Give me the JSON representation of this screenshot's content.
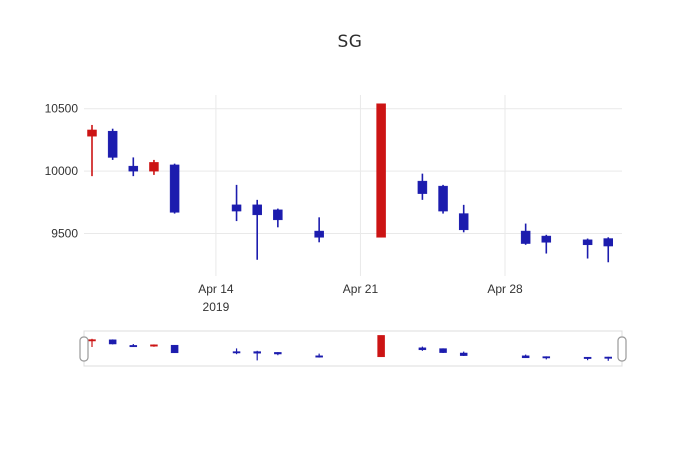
{
  "colors": {
    "up": "#1c1cae",
    "down": "#cc1414",
    "grid": "#e9e9e9",
    "axis_text": "#333333",
    "slider_border": "#dcdcdc",
    "handle_border": "#9a9a9a",
    "background": "#ffffff"
  },
  "chart_data": {
    "type": "candlestick",
    "title": "SG",
    "legend_position": "none",
    "grid": true,
    "rangeslider": true,
    "increasing_color": "#1c1cae",
    "decreasing_color": "#cc1414",
    "y_ticks": [
      10500,
      10000,
      9500
    ],
    "y_axis_range": [
      9160,
      10610
    ],
    "x_tick_labels": [
      {
        "label": "Apr 14",
        "sublabel": "2019",
        "day": 6
      },
      {
        "label": "Apr 21",
        "sublabel": "",
        "day": 13
      },
      {
        "label": "Apr 28",
        "sublabel": "",
        "day": 20
      }
    ],
    "candles": [
      {
        "date": "Apr 8",
        "day": 0,
        "open": 10330,
        "high": 10370,
        "low": 9960,
        "close": 10280
      },
      {
        "date": "Apr 9",
        "day": 1,
        "open": 10110,
        "high": 10340,
        "low": 10090,
        "close": 10320
      },
      {
        "date": "Apr 10",
        "day": 2,
        "open": 10000,
        "high": 10110,
        "low": 9960,
        "close": 10040
      },
      {
        "date": "Apr 11",
        "day": 3,
        "open": 10070,
        "high": 10090,
        "low": 9970,
        "close": 10000
      },
      {
        "date": "Apr 12",
        "day": 4,
        "open": 9670,
        "high": 10060,
        "low": 9660,
        "close": 10050
      },
      {
        "date": "Apr 15",
        "day": 7,
        "open": 9680,
        "high": 9890,
        "low": 9600,
        "close": 9730
      },
      {
        "date": "Apr 16",
        "day": 8,
        "open": 9650,
        "high": 9770,
        "low": 9290,
        "close": 9730
      },
      {
        "date": "Apr 17",
        "day": 9,
        "open": 9610,
        "high": 9700,
        "low": 9550,
        "close": 9690
      },
      {
        "date": "Apr 19",
        "day": 11,
        "open": 9470,
        "high": 9630,
        "low": 9430,
        "close": 9520
      },
      {
        "date": "Apr 22",
        "day": 14,
        "open": 10540,
        "high": 10540,
        "low": 9470,
        "close": 9470
      },
      {
        "date": "Apr 24",
        "day": 16,
        "open": 9820,
        "high": 9980,
        "low": 9770,
        "close": 9920
      },
      {
        "date": "Apr 25",
        "day": 17,
        "open": 9680,
        "high": 9890,
        "low": 9660,
        "close": 9880
      },
      {
        "date": "Apr 26",
        "day": 18,
        "open": 9530,
        "high": 9730,
        "low": 9510,
        "close": 9660
      },
      {
        "date": "Apr 29",
        "day": 21,
        "open": 9420,
        "high": 9580,
        "low": 9410,
        "close": 9520
      },
      {
        "date": "Apr 30",
        "day": 22,
        "open": 9430,
        "high": 9490,
        "low": 9340,
        "close": 9480
      },
      {
        "date": "May 2",
        "day": 24,
        "open": 9410,
        "high": 9460,
        "low": 9300,
        "close": 9450
      },
      {
        "date": "May 3",
        "day": 25,
        "open": 9400,
        "high": 9470,
        "low": 9270,
        "close": 9460
      }
    ]
  }
}
